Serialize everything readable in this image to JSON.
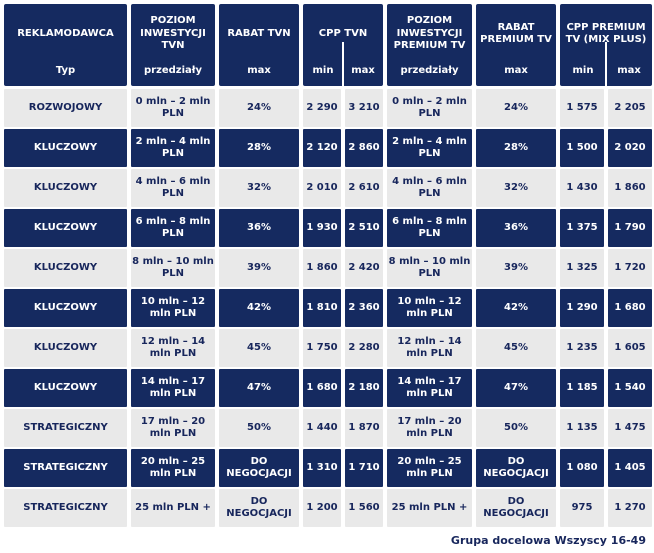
{
  "colors": {
    "navy": "#152a60",
    "light_row": "#e9e9e9",
    "text_on_navy": "#ffffff",
    "text_on_light": "#17265c",
    "page_background": "#ffffff"
  },
  "table": {
    "header": {
      "col1": {
        "title": "REKLAMODAWCA",
        "sub": "Typ"
      },
      "col2": {
        "title": "POZIOM INWESTYCJI TVN",
        "sub": "przedziały"
      },
      "col3": {
        "title": "RABAT TVN",
        "sub": "max"
      },
      "col4": {
        "title": "CPP TVN",
        "sub_min": "min",
        "sub_max": "max"
      },
      "col5": {
        "title": "POZIOM INWESTYCJI PREMIUM TV",
        "sub": "przedziały"
      },
      "col6": {
        "title": "RABAT PREMIUM TV",
        "sub": "max"
      },
      "col7": {
        "title": "CPP PREMIUM TV (MIX PLUS)",
        "sub_min": "min",
        "sub_max": "max"
      }
    },
    "rows": [
      {
        "typ": "ROZWOJOWY",
        "tvn_range": "0 mln – 2 mln PLN",
        "tvn_rabat": "24%",
        "tvn_cpp_min": "2 290",
        "tvn_cpp_max": "3 210",
        "premium_range": "0 mln – 2 mln PLN",
        "premium_rabat": "24%",
        "premium_cpp_min": "1 575",
        "premium_cpp_max": "2 205"
      },
      {
        "typ": "KLUCZOWY",
        "tvn_range": "2 mln – 4 mln PLN",
        "tvn_rabat": "28%",
        "tvn_cpp_min": "2 120",
        "tvn_cpp_max": "2 860",
        "premium_range": "2 mln – 4 mln PLN",
        "premium_rabat": "28%",
        "premium_cpp_min": "1 500",
        "premium_cpp_max": "2 020"
      },
      {
        "typ": "KLUCZOWY",
        "tvn_range": "4 mln – 6 mln PLN",
        "tvn_rabat": "32%",
        "tvn_cpp_min": "2 010",
        "tvn_cpp_max": "2 610",
        "premium_range": "4 mln – 6 mln PLN",
        "premium_rabat": "32%",
        "premium_cpp_min": "1 430",
        "premium_cpp_max": "1 860"
      },
      {
        "typ": "KLUCZOWY",
        "tvn_range": "6 mln – 8 mln PLN",
        "tvn_rabat": "36%",
        "tvn_cpp_min": "1 930",
        "tvn_cpp_max": "2 510",
        "premium_range": "6 mln – 8 mln PLN",
        "premium_rabat": "36%",
        "premium_cpp_min": "1 375",
        "premium_cpp_max": "1 790"
      },
      {
        "typ": "KLUCZOWY",
        "tvn_range": "8 mln – 10 mln PLN",
        "tvn_rabat": "39%",
        "tvn_cpp_min": "1 860",
        "tvn_cpp_max": "2 420",
        "premium_range": "8 mln – 10 mln PLN",
        "premium_rabat": "39%",
        "premium_cpp_min": "1 325",
        "premium_cpp_max": "1 720"
      },
      {
        "typ": "KLUCZOWY",
        "tvn_range": "10 mln – 12 mln PLN",
        "tvn_rabat": "42%",
        "tvn_cpp_min": "1 810",
        "tvn_cpp_max": "2 360",
        "premium_range": "10 mln – 12 mln PLN",
        "premium_rabat": "42%",
        "premium_cpp_min": "1 290",
        "premium_cpp_max": "1 680"
      },
      {
        "typ": "KLUCZOWY",
        "tvn_range": "12 mln – 14 mln PLN",
        "tvn_rabat": "45%",
        "tvn_cpp_min": "1 750",
        "tvn_cpp_max": "2 280",
        "premium_range": "12 mln – 14 mln PLN",
        "premium_rabat": "45%",
        "premium_cpp_min": "1 235",
        "premium_cpp_max": "1 605"
      },
      {
        "typ": "KLUCZOWY",
        "tvn_range": "14 mln – 17 mln PLN",
        "tvn_rabat": "47%",
        "tvn_cpp_min": "1 680",
        "tvn_cpp_max": "2 180",
        "premium_range": "14 mln – 17 mln PLN",
        "premium_rabat": "47%",
        "premium_cpp_min": "1 185",
        "premium_cpp_max": "1 540"
      },
      {
        "typ": "STRATEGICZNY",
        "tvn_range": "17 mln – 20 mln PLN",
        "tvn_rabat": "50%",
        "tvn_cpp_min": "1 440",
        "tvn_cpp_max": "1 870",
        "premium_range": "17 mln – 20 mln PLN",
        "premium_rabat": "50%",
        "premium_cpp_min": "1 135",
        "premium_cpp_max": "1 475"
      },
      {
        "typ": "STRATEGICZNY",
        "tvn_range": "20 mln – 25 mln PLN",
        "tvn_rabat": "DO NEGOCJACJI",
        "tvn_cpp_min": "1 310",
        "tvn_cpp_max": "1 710",
        "premium_range": "20 mln – 25 mln PLN",
        "premium_rabat": "DO NEGOCJACJI",
        "premium_cpp_min": "1 080",
        "premium_cpp_max": "1 405"
      },
      {
        "typ": "STRATEGICZNY",
        "tvn_range": "25 mln PLN +",
        "tvn_rabat": "DO NEGOCJACJI",
        "tvn_cpp_min": "1 200",
        "tvn_cpp_max": "1 560",
        "premium_range": "25 mln PLN +",
        "premium_rabat": "DO NEGOCJACJI",
        "premium_cpp_min": "975",
        "premium_cpp_max": "1 270"
      }
    ],
    "footer": "Grupa docelowa Wszyscy 16-49"
  }
}
